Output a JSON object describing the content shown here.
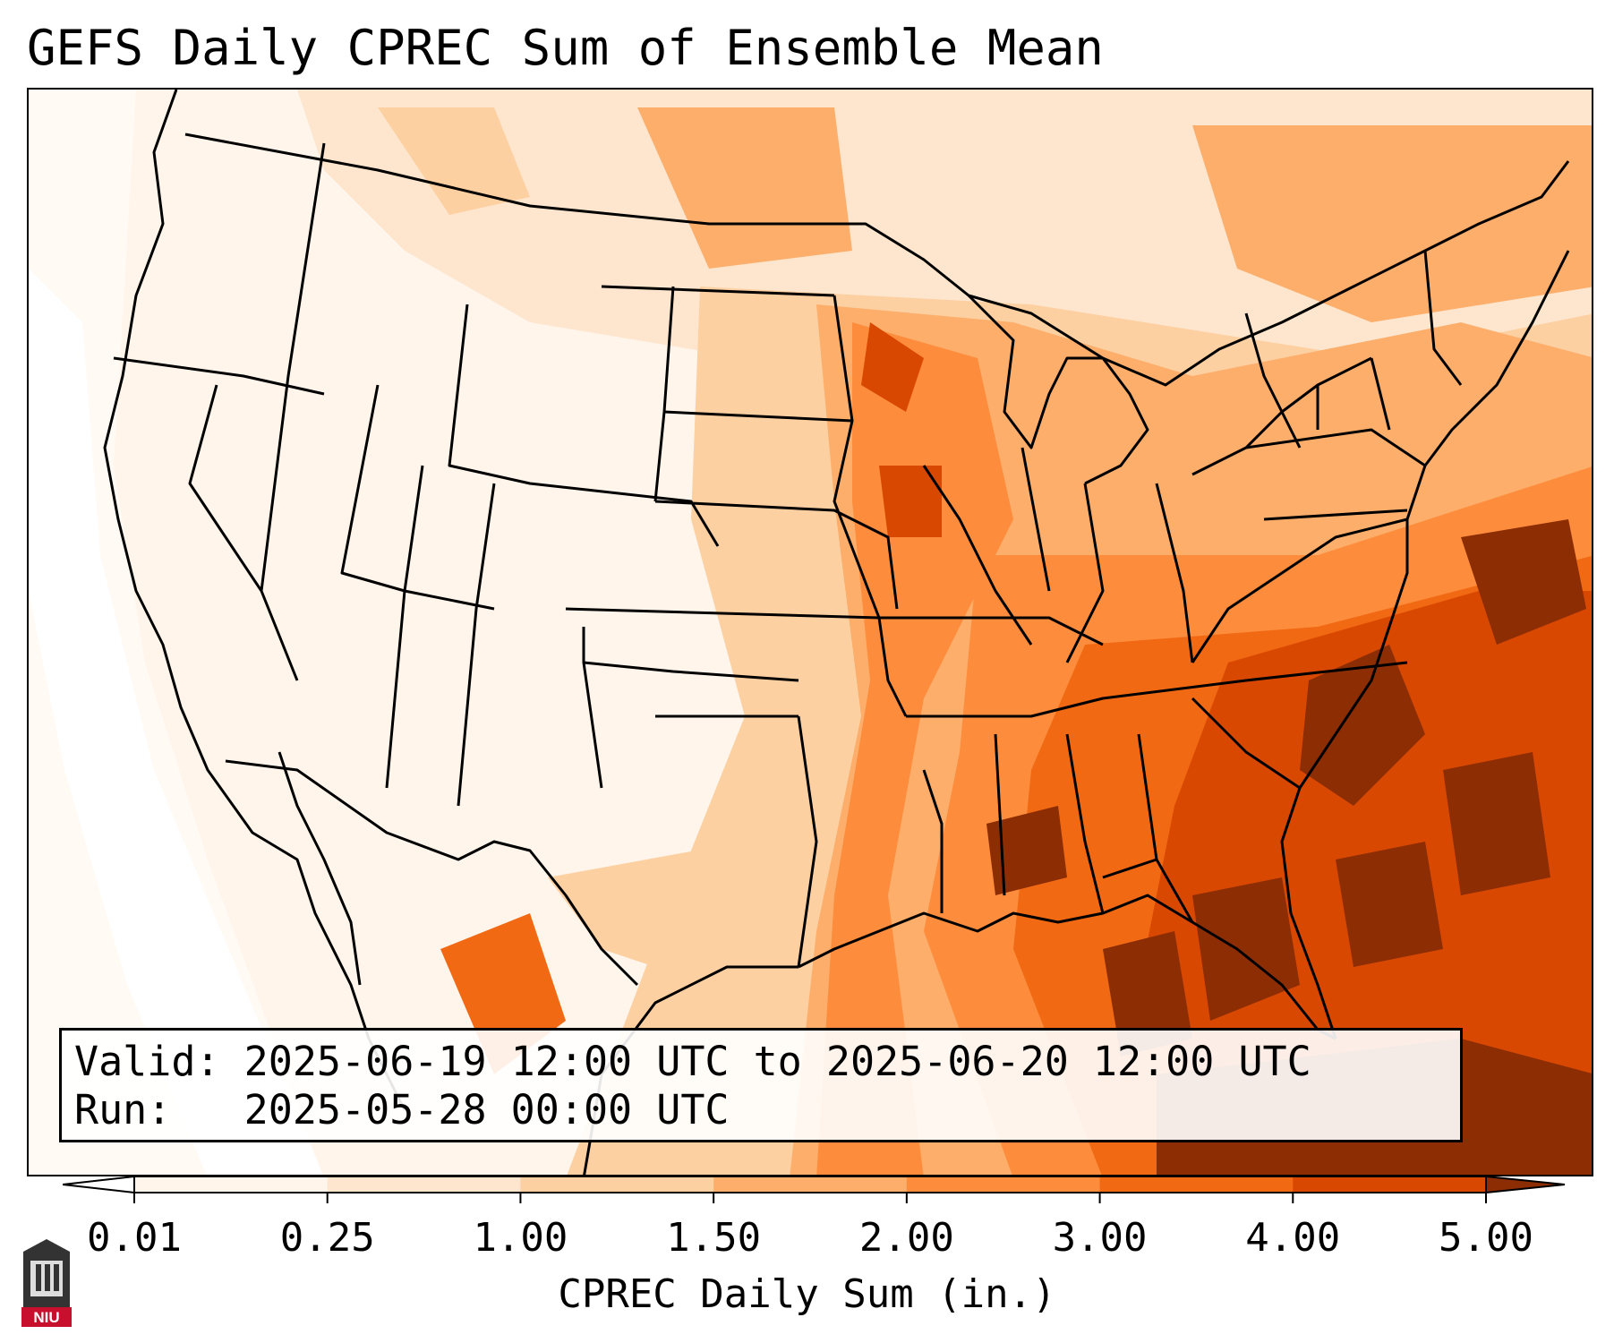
{
  "title": "GEFS Daily CPREC Sum of Ensemble Mean",
  "info": {
    "valid_label": "Valid:",
    "valid_value": "2025-06-19 12:00 UTC to 2025-06-20 12:00 UTC",
    "run_label": "Run:",
    "run_value": "2025-05-28 00:00 UTC"
  },
  "colorbar": {
    "label": "CPREC Daily Sum (in.)",
    "ticks": [
      "0.01",
      "0.25",
      "1.00",
      "1.50",
      "2.00",
      "3.00",
      "4.00",
      "5.00"
    ],
    "colors": [
      "#fff5eb",
      "#fee6ce",
      "#fdd0a2",
      "#fdae6b",
      "#fd8d3c",
      "#f16913",
      "#d94801"
    ],
    "under_color": "#ffffff",
    "over_color": "#8c2d04"
  },
  "logo": {
    "text": "NIU",
    "color": "#c8102e"
  }
}
